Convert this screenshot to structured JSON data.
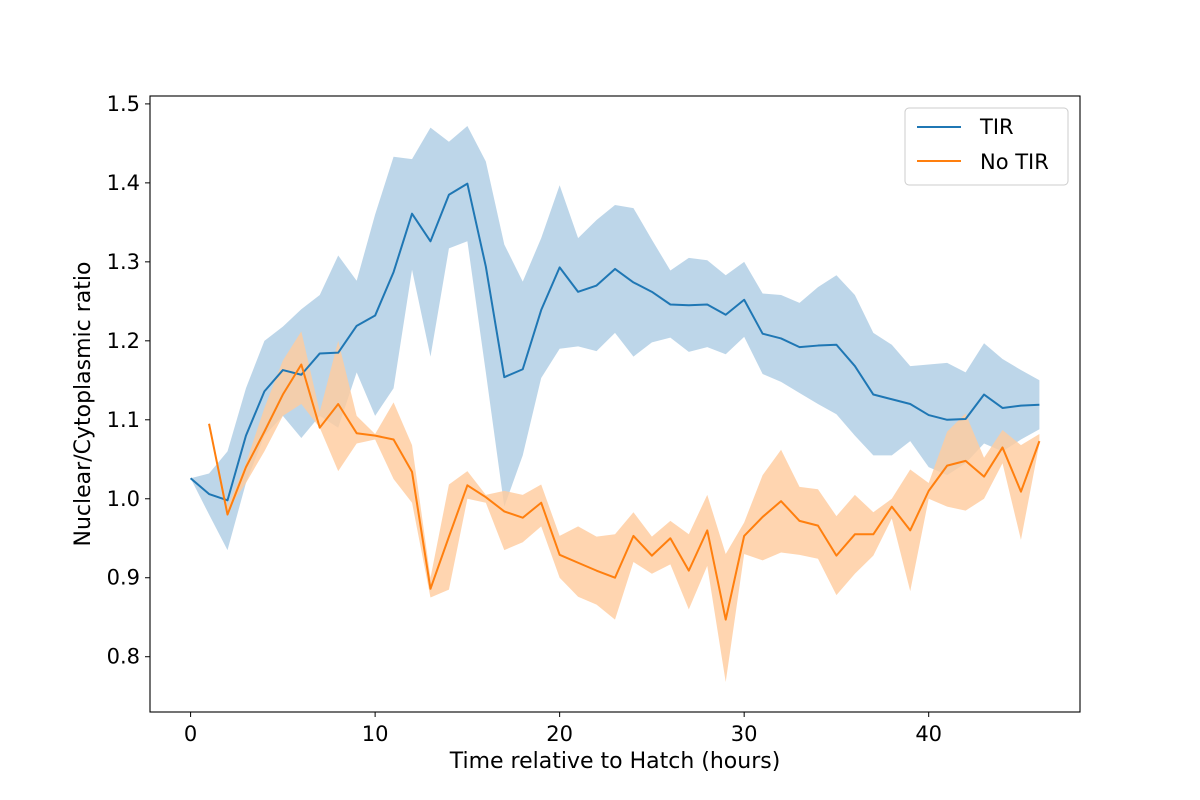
{
  "chart_data": {
    "type": "line",
    "title": "",
    "xlabel": "Time relative to Hatch (hours)",
    "ylabel": "Nuclear/Cytoplasmic ratio",
    "xlim": [
      -2.2,
      48.2
    ],
    "ylim": [
      0.73,
      1.51
    ],
    "xticks": [
      0,
      10,
      20,
      30,
      40
    ],
    "yticks": [
      0.8,
      0.9,
      1.0,
      1.1,
      1.2,
      1.3,
      1.4,
      1.5
    ],
    "xtick_labels": [
      "0",
      "10",
      "20",
      "30",
      "40"
    ],
    "ytick_labels": [
      "0.8",
      "0.9",
      "1.0",
      "1.1",
      "1.2",
      "1.3",
      "1.4",
      "1.5"
    ],
    "grid": false,
    "legend_position": "top-right",
    "series": [
      {
        "name": "TIR",
        "color": "#1f77b4",
        "band_color": "#aecde4",
        "x": [
          0,
          1,
          2,
          3,
          4,
          5,
          6,
          7,
          8,
          9,
          10,
          11,
          12,
          13,
          14,
          15,
          16,
          17,
          18,
          19,
          20,
          21,
          22,
          23,
          24,
          25,
          26,
          27,
          28,
          29,
          30,
          31,
          32,
          33,
          34,
          35,
          36,
          37,
          38,
          39,
          40,
          41,
          42,
          43,
          44,
          45,
          46
        ],
        "y": [
          1.026,
          1.006,
          0.998,
          1.08,
          1.136,
          1.163,
          1.157,
          1.184,
          1.185,
          1.219,
          1.232,
          1.287,
          1.361,
          1.326,
          1.385,
          1.399,
          1.294,
          1.154,
          1.164,
          1.239,
          1.293,
          1.262,
          1.27,
          1.291,
          1.274,
          1.262,
          1.246,
          1.245,
          1.246,
          1.233,
          1.252,
          1.209,
          1.203,
          1.192,
          1.194,
          1.195,
          1.168,
          1.132,
          1.126,
          1.12,
          1.106,
          1.1,
          1.101,
          1.132,
          1.115,
          1.118,
          1.119
        ],
        "lower": [
          1.026,
          0.98,
          0.935,
          1.02,
          1.08,
          1.105,
          1.077,
          1.105,
          1.09,
          1.16,
          1.105,
          1.14,
          1.29,
          1.18,
          1.317,
          1.326,
          1.16,
          0.99,
          1.055,
          1.153,
          1.19,
          1.193,
          1.187,
          1.21,
          1.18,
          1.198,
          1.204,
          1.186,
          1.192,
          1.183,
          1.205,
          1.158,
          1.148,
          1.134,
          1.12,
          1.107,
          1.08,
          1.055,
          1.055,
          1.073,
          1.04,
          1.03,
          1.045,
          1.07,
          1.06,
          1.075,
          1.088
        ],
        "upper": [
          1.026,
          1.032,
          1.06,
          1.14,
          1.2,
          1.218,
          1.24,
          1.258,
          1.308,
          1.276,
          1.36,
          1.433,
          1.43,
          1.47,
          1.452,
          1.472,
          1.427,
          1.322,
          1.275,
          1.33,
          1.397,
          1.33,
          1.353,
          1.372,
          1.368,
          1.328,
          1.289,
          1.305,
          1.302,
          1.283,
          1.3,
          1.26,
          1.258,
          1.248,
          1.268,
          1.283,
          1.258,
          1.21,
          1.195,
          1.168,
          1.17,
          1.172,
          1.16,
          1.197,
          1.177,
          1.163,
          1.15
        ]
      },
      {
        "name": "No TIR",
        "color": "#ff7f0e",
        "band_color": "#ffcc9f",
        "x": [
          1,
          2,
          3,
          4,
          5,
          6,
          7,
          8,
          9,
          10,
          11,
          12,
          13,
          14,
          15,
          16,
          17,
          18,
          19,
          20,
          21,
          22,
          23,
          24,
          25,
          26,
          27,
          28,
          29,
          30,
          31,
          32,
          33,
          34,
          35,
          36,
          37,
          38,
          39,
          40,
          41,
          42,
          43,
          44,
          45,
          46
        ],
        "y": [
          1.095,
          0.98,
          1.04,
          1.085,
          1.132,
          1.17,
          1.09,
          1.12,
          1.083,
          1.08,
          1.075,
          1.034,
          0.886,
          0.952,
          1.017,
          1.002,
          0.984,
          0.976,
          0.995,
          0.929,
          0.919,
          0.909,
          0.9,
          0.953,
          0.928,
          0.95,
          0.909,
          0.96,
          0.847,
          0.953,
          0.977,
          0.997,
          0.972,
          0.966,
          0.928,
          0.955,
          0.955,
          0.99,
          0.96,
          1.01,
          1.042,
          1.048,
          1.028,
          1.065,
          1.009,
          1.073
        ],
        "lower": [
          1.095,
          0.985,
          1.02,
          1.06,
          1.105,
          1.12,
          1.09,
          1.035,
          1.07,
          1.075,
          1.025,
          0.995,
          0.875,
          0.885,
          1.0,
          0.995,
          0.935,
          0.945,
          0.965,
          0.9,
          0.876,
          0.866,
          0.847,
          0.92,
          0.905,
          0.917,
          0.86,
          0.915,
          0.768,
          0.93,
          0.922,
          0.932,
          0.929,
          0.924,
          0.878,
          0.905,
          0.928,
          0.975,
          0.883,
          1.0,
          0.99,
          0.985,
          1.0,
          1.045,
          0.948,
          1.07
        ],
        "upper": [
          1.095,
          0.99,
          1.045,
          1.115,
          1.175,
          1.212,
          1.11,
          1.2,
          1.105,
          1.082,
          1.122,
          1.068,
          0.9,
          1.018,
          1.035,
          1.005,
          1.01,
          1.005,
          1.018,
          0.953,
          0.965,
          0.952,
          0.955,
          0.983,
          0.952,
          0.972,
          0.955,
          1.005,
          0.93,
          0.97,
          1.03,
          1.062,
          1.015,
          1.012,
          0.978,
          1.005,
          0.983,
          1.0,
          1.037,
          1.02,
          1.085,
          1.108,
          1.052,
          1.087,
          1.068,
          1.082
        ]
      }
    ]
  }
}
